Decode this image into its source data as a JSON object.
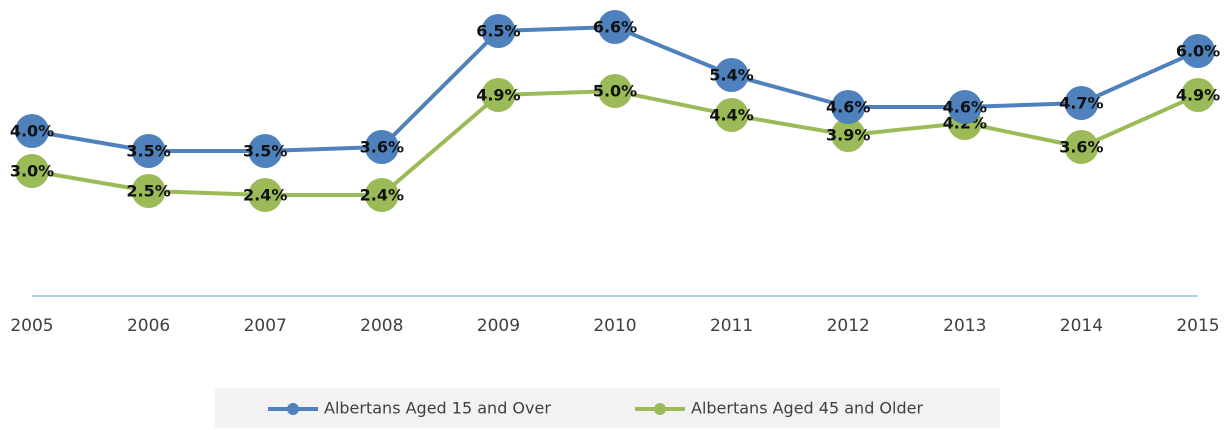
{
  "chart_data": {
    "type": "line",
    "x": [
      2005,
      2006,
      2007,
      2008,
      2009,
      2010,
      2011,
      2012,
      2013,
      2014,
      2015
    ],
    "xlim": [
      2005,
      2015
    ],
    "ylim": [
      0,
      7
    ],
    "series": [
      {
        "name": "Albertans Aged 15 and Over",
        "color": "#4f81bd",
        "values": [
          4.0,
          3.5,
          3.5,
          3.6,
          6.5,
          6.6,
          5.4,
          4.6,
          4.6,
          4.7,
          6.0
        ],
        "value_labels": [
          "4.0%",
          "3.5%",
          "3.5%",
          "3.6%",
          "6.5%",
          "6.6%",
          "5.4%",
          "4.6%",
          "4.6%",
          "4.7%",
          "6.0%"
        ]
      },
      {
        "name": "Albertans Aged 45 and Older",
        "color": "#9bbb59",
        "values": [
          3.0,
          2.5,
          2.4,
          2.4,
          4.9,
          5.0,
          4.4,
          3.9,
          4.2,
          3.6,
          4.9
        ],
        "value_labels": [
          "3.0%",
          "2.5%",
          "2.4%",
          "2.4%",
          "4.9%",
          "5.0%",
          "4.4%",
          "3.9%",
          "4.2%",
          "3.6%",
          "4.9%"
        ]
      }
    ],
    "legend": "bottom"
  }
}
